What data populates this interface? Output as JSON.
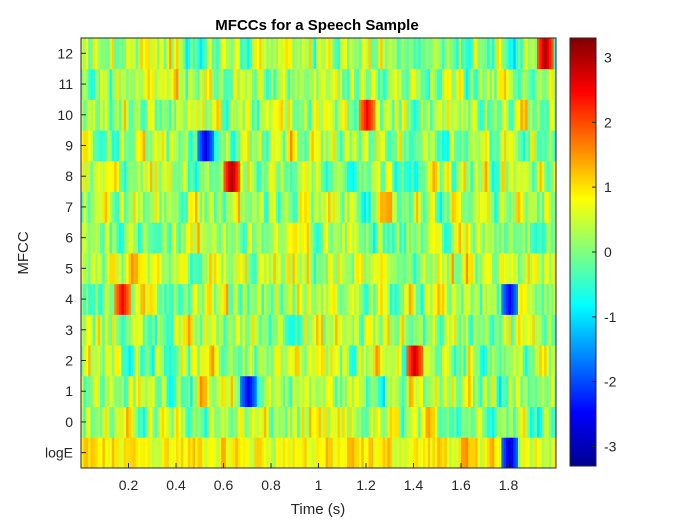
{
  "chart_data": {
    "type": "heatmap",
    "title": "MFCCs for a Speech Sample",
    "xlabel": "Time (s)",
    "ylabel": "MFCC",
    "xlim": [
      0,
      2.0
    ],
    "xticks": [
      "0.2",
      "0.4",
      "0.6",
      "0.8",
      "1",
      "1.2",
      "1.4",
      "1.6",
      "1.8"
    ],
    "xtick_values": [
      0.2,
      0.4,
      0.6,
      0.8,
      1.0,
      1.2,
      1.4,
      1.6,
      1.8
    ],
    "y_categories": [
      "logE",
      "0",
      "1",
      "2",
      "3",
      "4",
      "5",
      "6",
      "7",
      "8",
      "9",
      "10",
      "11",
      "12"
    ],
    "colormap": "jet",
    "clim": [
      -3.3,
      3.3
    ],
    "colorbar_ticks": [
      "3",
      "2",
      "1",
      "0",
      "-1",
      "-2",
      "-3"
    ],
    "colorbar_tick_values": [
      3,
      2,
      1,
      0,
      -1,
      -2,
      -3
    ],
    "notable_values": [
      {
        "row": "logE",
        "time": 1.8,
        "value": -2.8
      },
      {
        "row": "1",
        "time": 0.7,
        "value": -2.6
      },
      {
        "row": "2",
        "time": 1.4,
        "value": 2.8
      },
      {
        "row": "4",
        "time": 0.17,
        "value": 2.5
      },
      {
        "row": "4",
        "time": 1.8,
        "value": -2.5
      },
      {
        "row": "8",
        "time": 0.63,
        "value": 3.0
      },
      {
        "row": "9",
        "time": 0.52,
        "value": -2.6
      },
      {
        "row": "10",
        "time": 1.2,
        "value": 2.5
      },
      {
        "row": "12",
        "time": 1.95,
        "value": 3.0
      }
    ]
  }
}
